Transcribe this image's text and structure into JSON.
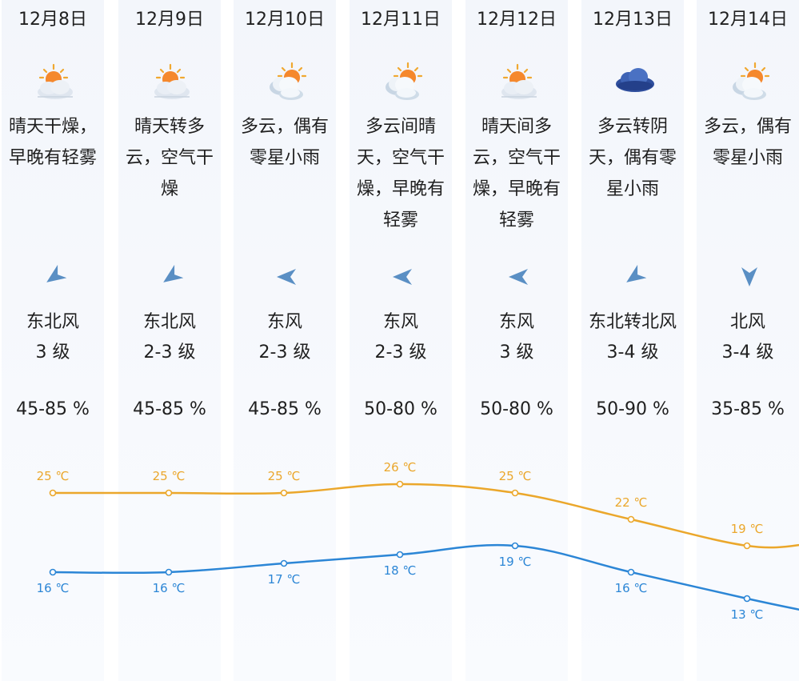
{
  "days": [
    {
      "date": "12月8日",
      "weather_icon": "sunny-haze-icon",
      "desc": "晴天干燥，早晚有轻雾",
      "wind_dir_icon": "wind-northeast-icon",
      "wind_rotation_deg": -35,
      "wind": "东北风",
      "level": "3 级",
      "humidity": "45-85 %",
      "high": "25 ℃",
      "low": "16 ℃"
    },
    {
      "date": "12月9日",
      "weather_icon": "sunny-haze-icon",
      "desc": "晴天转多云，空气干燥",
      "wind_dir_icon": "wind-northeast-icon",
      "wind_rotation_deg": -35,
      "wind": "东北风",
      "level": "2-3 级",
      "humidity": "45-85 %",
      "high": "25 ℃",
      "low": "16 ℃"
    },
    {
      "date": "12月10日",
      "weather_icon": "partly-cloudy-icon",
      "desc": "多云，偶有零星小雨",
      "wind_dir_icon": "wind-east-icon",
      "wind_rotation_deg": 0,
      "wind": "东风",
      "level": "2-3 级",
      "humidity": "45-85 %",
      "high": "25 ℃",
      "low": "17 ℃"
    },
    {
      "date": "12月11日",
      "weather_icon": "partly-cloudy-icon",
      "desc": "多云间晴天，空气干燥，早晚有轻雾",
      "wind_dir_icon": "wind-east-icon",
      "wind_rotation_deg": 0,
      "wind": "东风",
      "level": "2-3 级",
      "humidity": "50-80 %",
      "high": "26 ℃",
      "low": "18 ℃"
    },
    {
      "date": "12月12日",
      "weather_icon": "sunny-haze-icon",
      "desc": "晴天间多云，空气干燥，早晚有轻雾",
      "wind_dir_icon": "wind-east-icon",
      "wind_rotation_deg": 0,
      "wind": "东风",
      "level": "3 级",
      "humidity": "50-80 %",
      "high": "25 ℃",
      "low": "19 ℃"
    },
    {
      "date": "12月13日",
      "weather_icon": "overcast-cloud-icon",
      "desc": "多云转阴天，偶有零星小雨",
      "wind_dir_icon": "wind-northeast-icon",
      "wind_rotation_deg": -35,
      "wind": "东北转北风",
      "level": "3-4 级",
      "humidity": "50-90 %",
      "high": "22 ℃",
      "low": "16 ℃"
    },
    {
      "date": "12月14日",
      "weather_icon": "partly-cloudy-icon",
      "desc": "多云，偶有零星小雨",
      "wind_dir_icon": "wind-north-icon",
      "wind_rotation_deg": -90,
      "wind": "北风",
      "level": "3-4 级",
      "humidity": "35-85 %",
      "high": "19 ℃",
      "low": "13 ℃"
    }
  ],
  "chart_data": {
    "type": "line",
    "categories": [
      "12月8日",
      "12月9日",
      "12月10日",
      "12月11日",
      "12月12日",
      "12月13日",
      "12月14日"
    ],
    "series": [
      {
        "values": [
          25,
          25,
          25,
          26,
          25,
          22,
          19
        ],
        "color": "#eba72b"
      },
      {
        "values": [
          16,
          16,
          17,
          18,
          19,
          16,
          13
        ],
        "color": "#2c86d6"
      }
    ],
    "ylim": [
      13,
      26
    ]
  },
  "colors": {
    "high_line": "#eba72b",
    "low_line": "#2c86d6",
    "wind_arrow": "#5a8fc4"
  }
}
